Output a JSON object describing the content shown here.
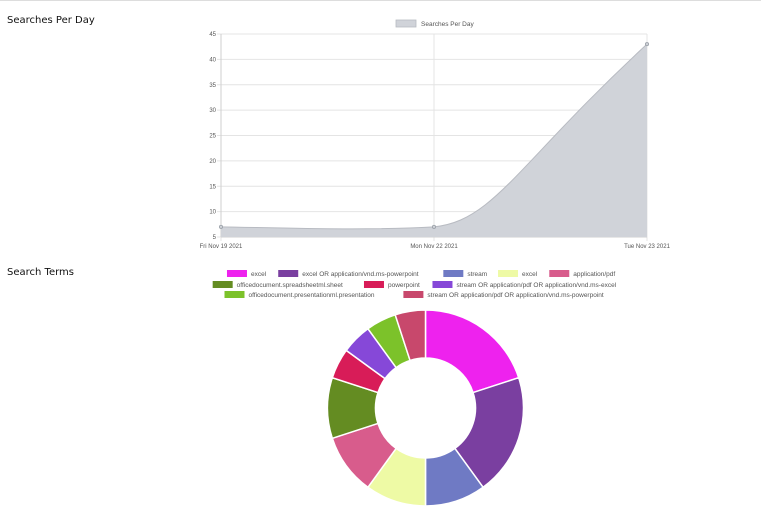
{
  "sections": {
    "searches_title": "Searches Per Day",
    "terms_title": "Search Terms"
  },
  "chart_data": [
    {
      "type": "area",
      "legend": [
        "Searches Per Day"
      ],
      "x": [
        "Fri Nov 19 2021",
        "Mon Nov 22 2021",
        "Tue Nov 23 2021"
      ],
      "series": [
        {
          "name": "Searches Per Day",
          "values": [
            7,
            7,
            43
          ],
          "color": "#c8cbd1"
        }
      ],
      "ylim": [
        5,
        45
      ],
      "yticks": [
        5,
        10,
        15,
        20,
        25,
        30,
        35,
        40,
        45
      ],
      "grid": true,
      "legend_position": "top"
    },
    {
      "type": "pie",
      "variant": "doughnut",
      "legend_position": "top",
      "slices": [
        {
          "label": "excel",
          "value": 20,
          "color": "#ee22ee"
        },
        {
          "label": "excel OR application/vnd.ms-powerpoint",
          "value": 20,
          "color": "#7a3fa0"
        },
        {
          "label": "stream",
          "value": 10,
          "color": "#6f7ac4"
        },
        {
          "label": "excel",
          "value": 10,
          "color": "#eefaa5"
        },
        {
          "label": "application/pdf",
          "value": 10,
          "color": "#d85c8c"
        },
        {
          "label": "officedocument.spreadsheetml.sheet",
          "value": 10,
          "color": "#648c22"
        },
        {
          "label": "powerpoint",
          "value": 5,
          "color": "#d81c58"
        },
        {
          "label": "stream OR application/pdf OR application/vnd.ms-excel",
          "value": 5,
          "color": "#8648d8"
        },
        {
          "label": "officedocument.presentationml.presentation",
          "value": 5,
          "color": "#7cc22a"
        },
        {
          "label": "stream OR application/pdf OR application/vnd.ms-powerpoint",
          "value": 5,
          "color": "#c8486c"
        }
      ],
      "legend_items": [
        {
          "label": "excel",
          "color": "#ee22ee"
        },
        {
          "label": "excel OR application/vnd.ms-powerpoint",
          "color": "#7a3fa0"
        },
        {
          "label": "stream",
          "color": "#6f7ac4"
        },
        {
          "label": "excel",
          "color": "#eefaa5"
        },
        {
          "label": "application/pdf",
          "color": "#d85c8c"
        },
        {
          "label": "officedocument.spreadsheetml.sheet",
          "color": "#648c22"
        },
        {
          "label": "powerpoint",
          "color": "#d81c58"
        },
        {
          "label": "stream OR application/pdf OR application/vnd.ms-excel",
          "color": "#8648d8"
        },
        {
          "label": "officedocument.presentationml.presentation",
          "color": "#7cc22a"
        },
        {
          "label": "stream OR application/pdf OR application/vnd.ms-powerpoint",
          "color": "#c8486c"
        }
      ]
    }
  ]
}
